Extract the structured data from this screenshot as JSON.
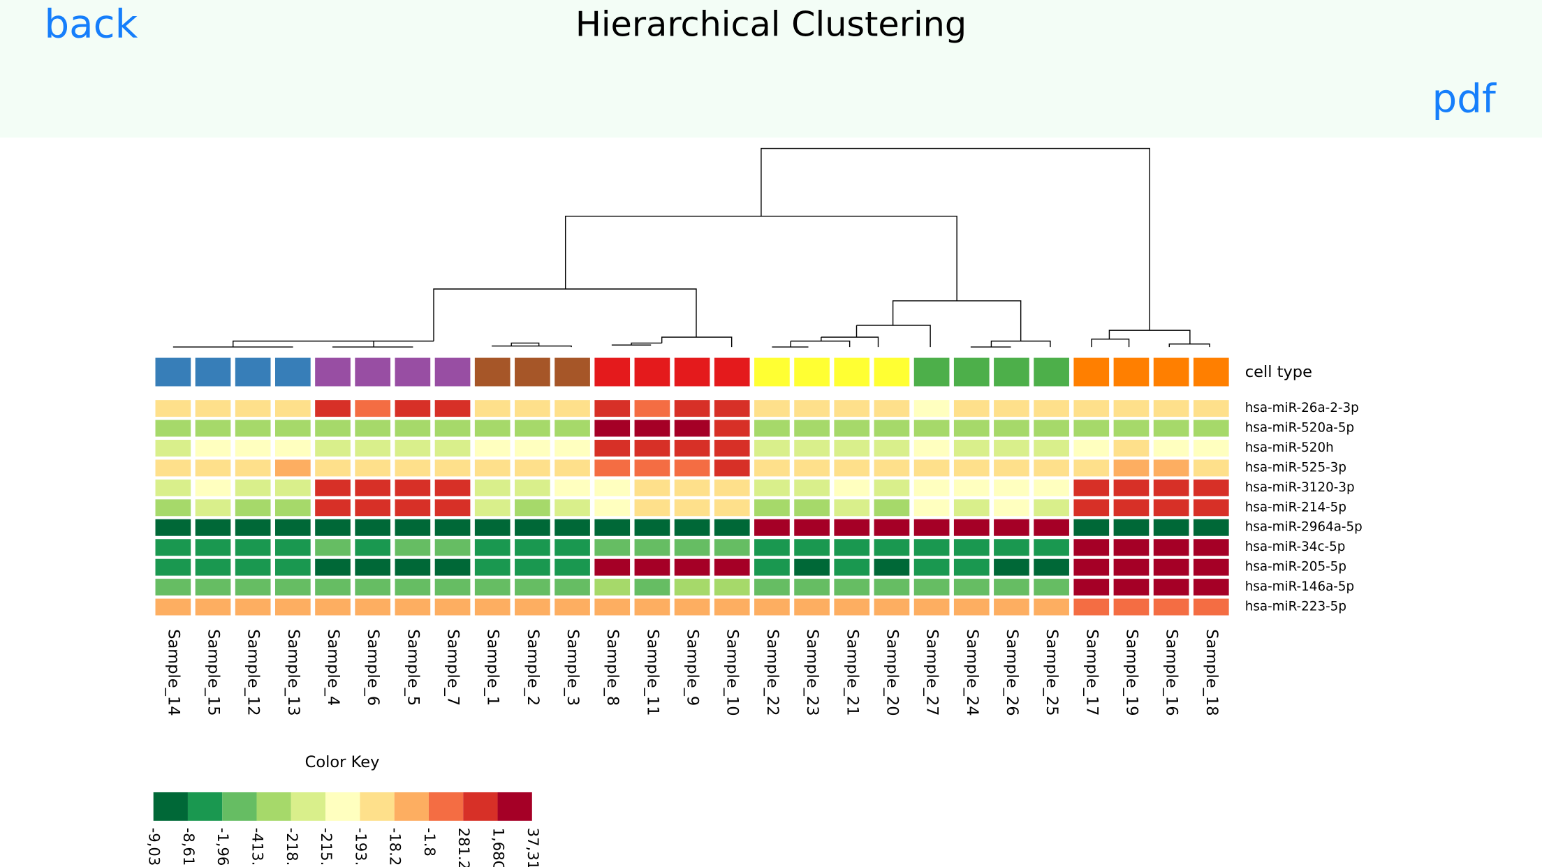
{
  "header": {
    "back": "back",
    "title": "Hierarchical Clustering",
    "pdf": "pdf"
  },
  "heatmap": {
    "columns": [
      "Sample_14",
      "Sample_15",
      "Sample_12",
      "Sample_13",
      "Sample_4",
      "Sample_6",
      "Sample_5",
      "Sample_7",
      "Sample_1",
      "Sample_2",
      "Sample_3",
      "Sample_8",
      "Sample_11",
      "Sample_9",
      "Sample_10",
      "Sample_22",
      "Sample_23",
      "Sample_21",
      "Sample_20",
      "Sample_27",
      "Sample_24",
      "Sample_26",
      "Sample_25",
      "Sample_17",
      "Sample_19",
      "Sample_16",
      "Sample_18"
    ],
    "cell_type_label": "cell type",
    "cell_type_colors": [
      "#377eb8",
      "#377eb8",
      "#377eb8",
      "#377eb8",
      "#984ea3",
      "#984ea3",
      "#984ea3",
      "#984ea3",
      "#a65628",
      "#a65628",
      "#a65628",
      "#e41a1c",
      "#e41a1c",
      "#e41a1c",
      "#e41a1c",
      "#ffff33",
      "#ffff33",
      "#ffff33",
      "#ffff33",
      "#4daf4a",
      "#4daf4a",
      "#4daf4a",
      "#4daf4a",
      "#ff7f00",
      "#ff7f00",
      "#ff7f00",
      "#ff7f00"
    ],
    "rows": [
      {
        "label": "hsa-miR-26a-2-3p",
        "colors": [
          "#fee08b",
          "#fee08b",
          "#fee08b",
          "#fee08b",
          "#d73027",
          "#f46d43",
          "#d73027",
          "#d73027",
          "#fee08b",
          "#fee08b",
          "#fee08b",
          "#d73027",
          "#f46d43",
          "#d73027",
          "#d73027",
          "#fee08b",
          "#fee08b",
          "#fee08b",
          "#fee08b",
          "#ffffbf",
          "#fee08b",
          "#fee08b",
          "#fee08b",
          "#fee08b",
          "#fee08b",
          "#fee08b",
          "#fee08b"
        ]
      },
      {
        "label": "hsa-miR-520a-5p",
        "colors": [
          "#a6d96a",
          "#a6d96a",
          "#a6d96a",
          "#a6d96a",
          "#a6d96a",
          "#a6d96a",
          "#a6d96a",
          "#a6d96a",
          "#a6d96a",
          "#a6d96a",
          "#a6d96a",
          "#a50026",
          "#a50026",
          "#a50026",
          "#d73027",
          "#a6d96a",
          "#a6d96a",
          "#a6d96a",
          "#a6d96a",
          "#a6d96a",
          "#a6d96a",
          "#a6d96a",
          "#a6d96a",
          "#a6d96a",
          "#a6d96a",
          "#a6d96a",
          "#a6d96a"
        ]
      },
      {
        "label": "hsa-miR-520h",
        "colors": [
          "#d9ef8b",
          "#ffffbf",
          "#ffffbf",
          "#ffffbf",
          "#d9ef8b",
          "#d9ef8b",
          "#d9ef8b",
          "#d9ef8b",
          "#ffffbf",
          "#ffffbf",
          "#ffffbf",
          "#d73027",
          "#d73027",
          "#d73027",
          "#d73027",
          "#d9ef8b",
          "#d9ef8b",
          "#d9ef8b",
          "#d9ef8b",
          "#ffffbf",
          "#d9ef8b",
          "#d9ef8b",
          "#d9ef8b",
          "#ffffbf",
          "#fee08b",
          "#ffffbf",
          "#ffffbf"
        ]
      },
      {
        "label": "hsa-miR-525-3p",
        "colors": [
          "#fee08b",
          "#fee08b",
          "#fee08b",
          "#fdae61",
          "#fee08b",
          "#fee08b",
          "#fee08b",
          "#fee08b",
          "#fee08b",
          "#fee08b",
          "#fee08b",
          "#f46d43",
          "#f46d43",
          "#f46d43",
          "#d73027",
          "#fee08b",
          "#fee08b",
          "#fee08b",
          "#fee08b",
          "#fee08b",
          "#fee08b",
          "#fee08b",
          "#fee08b",
          "#fee08b",
          "#fdae61",
          "#fdae61",
          "#fee08b"
        ]
      },
      {
        "label": "hsa-miR-3120-3p",
        "colors": [
          "#d9ef8b",
          "#ffffbf",
          "#d9ef8b",
          "#d9ef8b",
          "#d73027",
          "#d73027",
          "#d73027",
          "#d73027",
          "#d9ef8b",
          "#d9ef8b",
          "#ffffbf",
          "#ffffbf",
          "#fee08b",
          "#fee08b",
          "#fee08b",
          "#d9ef8b",
          "#d9ef8b",
          "#ffffbf",
          "#d9ef8b",
          "#ffffbf",
          "#ffffbf",
          "#ffffbf",
          "#ffffbf",
          "#d73027",
          "#d73027",
          "#d73027",
          "#d73027"
        ]
      },
      {
        "label": "hsa-miR-214-5p",
        "colors": [
          "#a6d96a",
          "#d9ef8b",
          "#a6d96a",
          "#a6d96a",
          "#d73027",
          "#d73027",
          "#d73027",
          "#d73027",
          "#d9ef8b",
          "#a6d96a",
          "#d9ef8b",
          "#ffffbf",
          "#fee08b",
          "#fee08b",
          "#fee08b",
          "#a6d96a",
          "#a6d96a",
          "#d9ef8b",
          "#a6d96a",
          "#ffffbf",
          "#d9ef8b",
          "#ffffbf",
          "#d9ef8b",
          "#d73027",
          "#d73027",
          "#d73027",
          "#d73027"
        ]
      },
      {
        "label": "hsa-miR-2964a-5p",
        "colors": [
          "#006837",
          "#006837",
          "#006837",
          "#006837",
          "#006837",
          "#006837",
          "#006837",
          "#006837",
          "#006837",
          "#006837",
          "#006837",
          "#006837",
          "#006837",
          "#006837",
          "#006837",
          "#a50026",
          "#a50026",
          "#a50026",
          "#a50026",
          "#a50026",
          "#a50026",
          "#a50026",
          "#a50026",
          "#006837",
          "#006837",
          "#006837",
          "#006837"
        ]
      },
      {
        "label": "hsa-miR-34c-5p",
        "colors": [
          "#1a9850",
          "#1a9850",
          "#1a9850",
          "#1a9850",
          "#66bd63",
          "#1a9850",
          "#66bd63",
          "#66bd63",
          "#1a9850",
          "#1a9850",
          "#1a9850",
          "#66bd63",
          "#66bd63",
          "#66bd63",
          "#66bd63",
          "#1a9850",
          "#1a9850",
          "#1a9850",
          "#1a9850",
          "#1a9850",
          "#1a9850",
          "#1a9850",
          "#1a9850",
          "#a50026",
          "#a50026",
          "#a50026",
          "#a50026"
        ]
      },
      {
        "label": "hsa-miR-205-5p",
        "colors": [
          "#1a9850",
          "#1a9850",
          "#1a9850",
          "#1a9850",
          "#006837",
          "#006837",
          "#006837",
          "#006837",
          "#1a9850",
          "#1a9850",
          "#1a9850",
          "#a50026",
          "#a50026",
          "#a50026",
          "#a50026",
          "#1a9850",
          "#006837",
          "#1a9850",
          "#006837",
          "#1a9850",
          "#1a9850",
          "#006837",
          "#006837",
          "#a50026",
          "#a50026",
          "#a50026",
          "#a50026"
        ]
      },
      {
        "label": "hsa-miR-146a-5p",
        "colors": [
          "#66bd63",
          "#66bd63",
          "#66bd63",
          "#66bd63",
          "#66bd63",
          "#66bd63",
          "#66bd63",
          "#66bd63",
          "#66bd63",
          "#66bd63",
          "#66bd63",
          "#a6d96a",
          "#66bd63",
          "#a6d96a",
          "#a6d96a",
          "#66bd63",
          "#66bd63",
          "#66bd63",
          "#66bd63",
          "#66bd63",
          "#66bd63",
          "#66bd63",
          "#66bd63",
          "#a50026",
          "#a50026",
          "#a50026",
          "#a50026"
        ]
      },
      {
        "label": "hsa-miR-223-5p",
        "colors": [
          "#fdae61",
          "#fdae61",
          "#fdae61",
          "#fdae61",
          "#fdae61",
          "#fdae61",
          "#fdae61",
          "#fdae61",
          "#fdae61",
          "#fdae61",
          "#fdae61",
          "#fdae61",
          "#fdae61",
          "#fdae61",
          "#fdae61",
          "#fdae61",
          "#fdae61",
          "#fdae61",
          "#fdae61",
          "#fdae61",
          "#fdae61",
          "#fdae61",
          "#fdae61",
          "#f46d43",
          "#f46d43",
          "#f46d43",
          "#f46d43"
        ]
      }
    ],
    "color_key": {
      "title": "Color Key",
      "colors": [
        "#006837",
        "#1a9850",
        "#66bd63",
        "#a6d96a",
        "#d9ef8b",
        "#ffffbf",
        "#fee08b",
        "#fdae61",
        "#f46d43",
        "#d73027",
        "#a50026"
      ],
      "labels": [
        "-9,03",
        "-8,61",
        "-1,96",
        "-413.",
        "-218.",
        "-215.",
        "-193.",
        "-18.2",
        "-1.8",
        "281.2",
        "1,68C",
        "37,31"
      ]
    }
  }
}
